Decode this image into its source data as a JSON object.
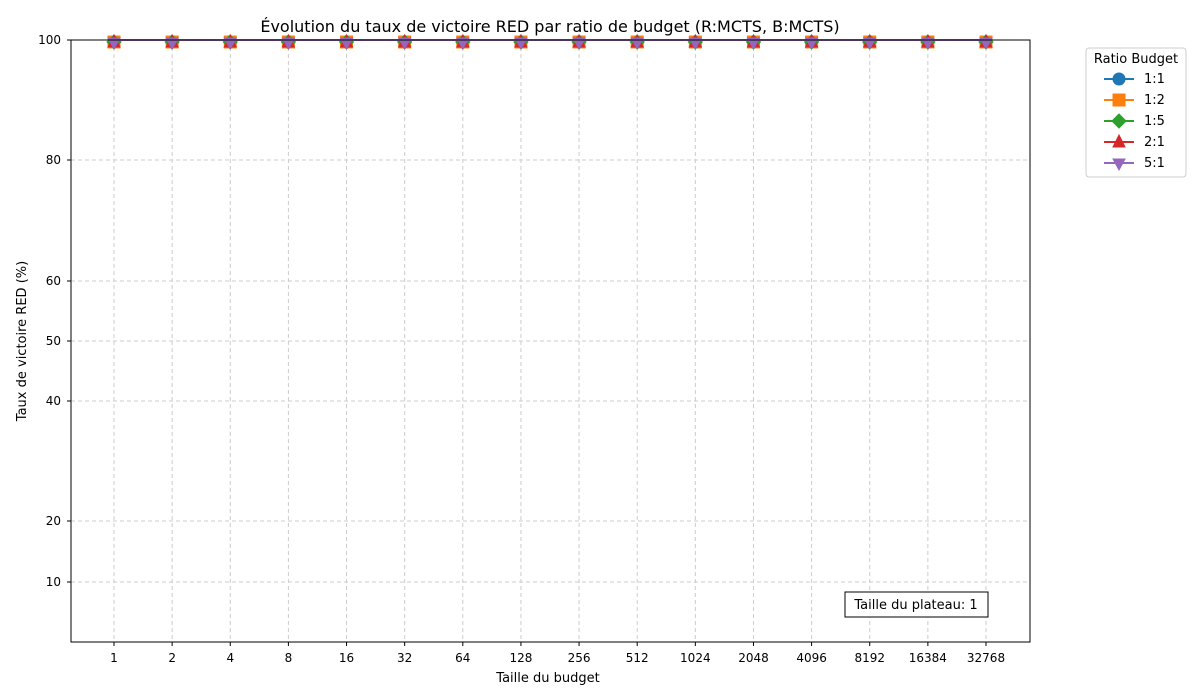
{
  "chart_data": {
    "type": "line",
    "title": "Évolution du taux de victoire RED par ratio de budget (R:MCTS, B:MCTS)",
    "xlabel": "Taille du budget",
    "ylabel": "Taux de victoire RED (%)",
    "categories": [
      "1",
      "2",
      "4",
      "8",
      "16",
      "32",
      "64",
      "128",
      "256",
      "512",
      "1024",
      "2048",
      "4096",
      "8192",
      "16384",
      "32768"
    ],
    "yticks": [
      10,
      20,
      40,
      50,
      60,
      80,
      100
    ],
    "ylim": [
      0,
      100
    ],
    "y_scale": "custom-nonlinear",
    "grid": true,
    "legend_title": "Ratio Budget",
    "legend_position": "outside-top-right",
    "series": [
      {
        "name": "1:1",
        "color": "#1f77b4",
        "marker": "circle",
        "values": [
          100,
          100,
          100,
          100,
          100,
          100,
          100,
          100,
          100,
          100,
          100,
          100,
          100,
          100,
          100,
          100
        ]
      },
      {
        "name": "1:2",
        "color": "#ff7f0e",
        "marker": "square",
        "values": [
          100,
          100,
          100,
          100,
          100,
          100,
          100,
          100,
          100,
          100,
          100,
          100,
          100,
          100,
          100,
          100
        ]
      },
      {
        "name": "1:5",
        "color": "#2ca02c",
        "marker": "diamond",
        "values": [
          100,
          100,
          100,
          100,
          100,
          100,
          100,
          100,
          100,
          100,
          100,
          100,
          100,
          100,
          100,
          100
        ]
      },
      {
        "name": "2:1",
        "color": "#d62728",
        "marker": "triangle-up",
        "values": [
          100,
          100,
          100,
          100,
          100,
          100,
          100,
          100,
          100,
          100,
          100,
          100,
          100,
          100,
          100,
          100
        ]
      },
      {
        "name": "5:1",
        "color": "#9467bd",
        "marker": "triangle-down",
        "values": [
          100,
          100,
          100,
          100,
          100,
          100,
          100,
          100,
          100,
          100,
          100,
          100,
          100,
          100,
          100,
          100
        ]
      }
    ],
    "annotation": "Taille du plateau: 1"
  }
}
